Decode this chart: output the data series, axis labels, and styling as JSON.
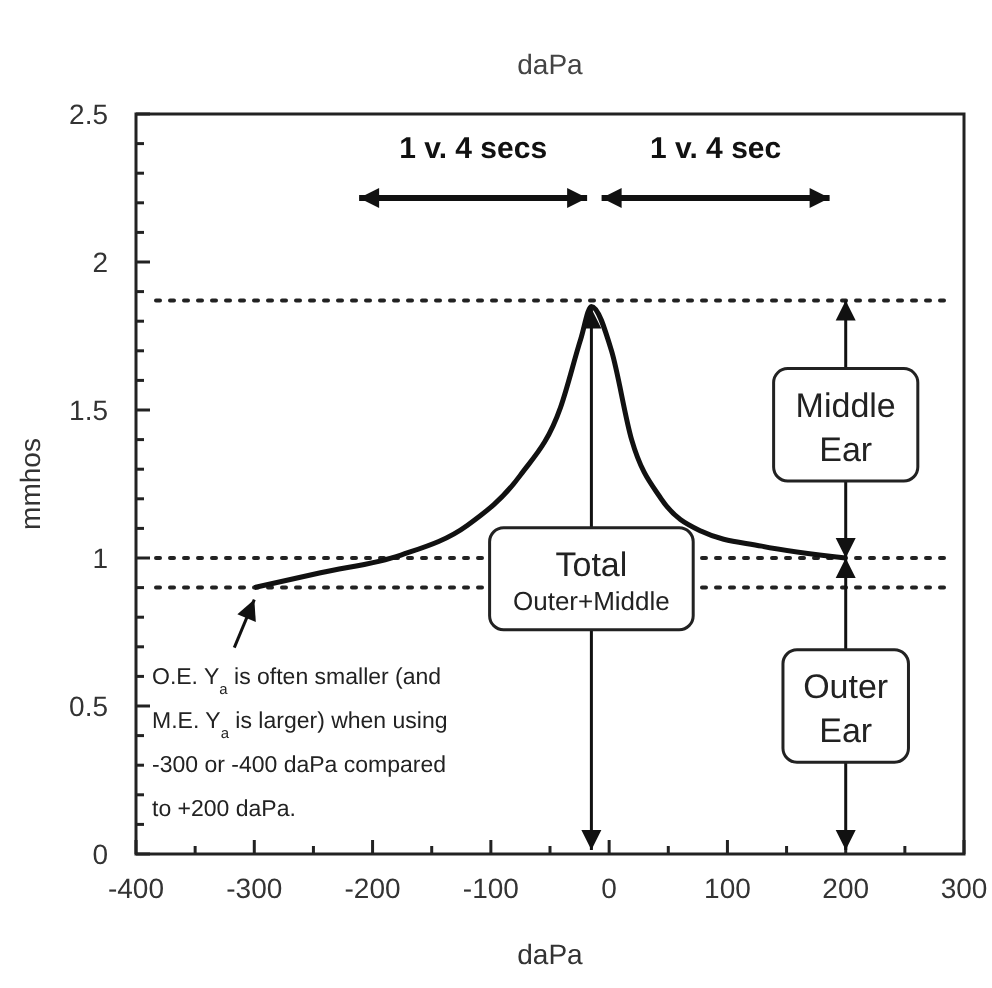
{
  "chart_data": {
    "type": "line",
    "xlabel": "daPa",
    "ylabel": "mmhos",
    "x": [
      -300,
      -244,
      -176,
      -120,
      -75,
      -41,
      -24,
      -15,
      2,
      19,
      44,
      78,
      129,
      200
    ],
    "series": [
      {
        "color": "#111111",
        "values": [
          0.9,
          0.95,
          1.01,
          1.11,
          1.28,
          1.51,
          1.74,
          1.85,
          1.7,
          1.4,
          1.2,
          1.09,
          1.04,
          1.0
        ]
      }
    ],
    "xlim": [
      -400,
      300
    ],
    "xticks": [
      -400,
      {
        "value": -350,
        "label": null
      },
      -300,
      {
        "value": -250,
        "label": null
      },
      -200,
      {
        "value": -150,
        "label": null
      },
      -100,
      {
        "value": -50,
        "label": null
      },
      0,
      {
        "value": 50,
        "label": null
      },
      100,
      {
        "value": 150,
        "label": null
      },
      200,
      {
        "value": 250,
        "label": null
      },
      300
    ],
    "ylim": [
      0,
      2.5
    ],
    "yticks": [
      0,
      {
        "value": 0.1,
        "label": null
      },
      {
        "value": 0.2,
        "label": null
      },
      {
        "value": 0.3,
        "label": null
      },
      {
        "value": 0.4,
        "label": null
      },
      0.5,
      {
        "value": 0.6,
        "label": null
      },
      {
        "value": 0.7,
        "label": null
      },
      {
        "value": 0.8,
        "label": null
      },
      {
        "value": 0.9,
        "label": null
      },
      1,
      {
        "value": 1.1,
        "label": null
      },
      {
        "value": 1.2,
        "label": null
      },
      {
        "value": 1.3,
        "label": null
      },
      {
        "value": 1.4,
        "label": null
      },
      1.5,
      {
        "value": 1.6,
        "label": null
      },
      {
        "value": 1.7,
        "label": null
      },
      {
        "value": 1.8,
        "label": null
      },
      {
        "value": 1.9,
        "label": null
      },
      2,
      {
        "value": 2.1,
        "label": null
      },
      {
        "value": 2.2,
        "label": null
      },
      {
        "value": 2.3,
        "label": null
      },
      {
        "value": 2.4,
        "label": null
      },
      2.5
    ],
    "marker": "none",
    "line_style": "solid",
    "ref_lines": [
      {
        "axis": "y",
        "value": 1.87,
        "line_style": "dotted",
        "color": "#222222"
      },
      {
        "axis": "y",
        "value": 1.0,
        "line_style": "dotted",
        "color": "#222222"
      },
      {
        "axis": "y",
        "value": 0.9,
        "line_style": "dotted",
        "color": "#222222"
      }
    ],
    "annotations": [
      "daPa",
      "1 v. 4 secs",
      "1 v. 4 sec",
      {
        "text": "Total\nOuter+Middle",
        "x": -15,
        "y": 0.93
      },
      "Middle\nEar",
      "Outer\nEar",
      {
        "text": "O.E. Y$_{a}$ is often smaller (and\nM.E. Y$_{a}$ is larger) when using\n-300 or -400 daPa compared\nto +200 daPa.",
        "x": -300,
        "y": 0.9
      }
    ]
  }
}
